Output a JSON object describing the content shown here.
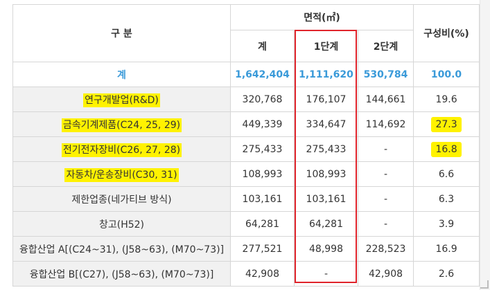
{
  "header": {
    "category": "구 분",
    "area": "면적(㎡)",
    "ratio": "구성비(%)",
    "total": "계",
    "phase1": "1단계",
    "phase2": "2단계"
  },
  "total_row": {
    "label": "계",
    "total": "1,642,404",
    "phase1": "1,111,620",
    "phase2": "530,784",
    "ratio": "100.0"
  },
  "rows": [
    {
      "label": "연구개발업(R&D)",
      "total": "320,768",
      "phase1": "176,107",
      "phase2": "144,661",
      "ratio": "19.6"
    },
    {
      "label": "금속기계제품(C24, 25, 29)",
      "total": "449,339",
      "phase1": "334,647",
      "phase2": "114,692",
      "ratio": "27.3"
    },
    {
      "label": "전기전자장비(C26, 27, 28)",
      "total": "275,433",
      "phase1": "275,433",
      "phase2": "-",
      "ratio": "16.8"
    },
    {
      "label": "자동차/운송장비(C30, 31)",
      "total": "108,993",
      "phase1": "108,993",
      "phase2": "-",
      "ratio": "6.6"
    },
    {
      "label": "제한업종(네가티브 방식)",
      "total": "103,161",
      "phase1": "103,161",
      "phase2": "-",
      "ratio": "6.3"
    },
    {
      "label": "창고(H52)",
      "total": "64,281",
      "phase1": "64,281",
      "phase2": "-",
      "ratio": "3.9"
    },
    {
      "label": "융합산업 A[(C24~31), (J58~63), (M70~73)]",
      "total": "277,521",
      "phase1": "48,998",
      "phase2": "228,523",
      "ratio": "16.9"
    },
    {
      "label": "융합산업 B[(C27), (J58~63), (M70~73)]",
      "total": "42,908",
      "phase1": "-",
      "phase2": "42,908",
      "ratio": "2.6"
    }
  ],
  "highlight_color": "#fff200",
  "total_color": "#3a9ad9",
  "box_color": "#e0242b"
}
